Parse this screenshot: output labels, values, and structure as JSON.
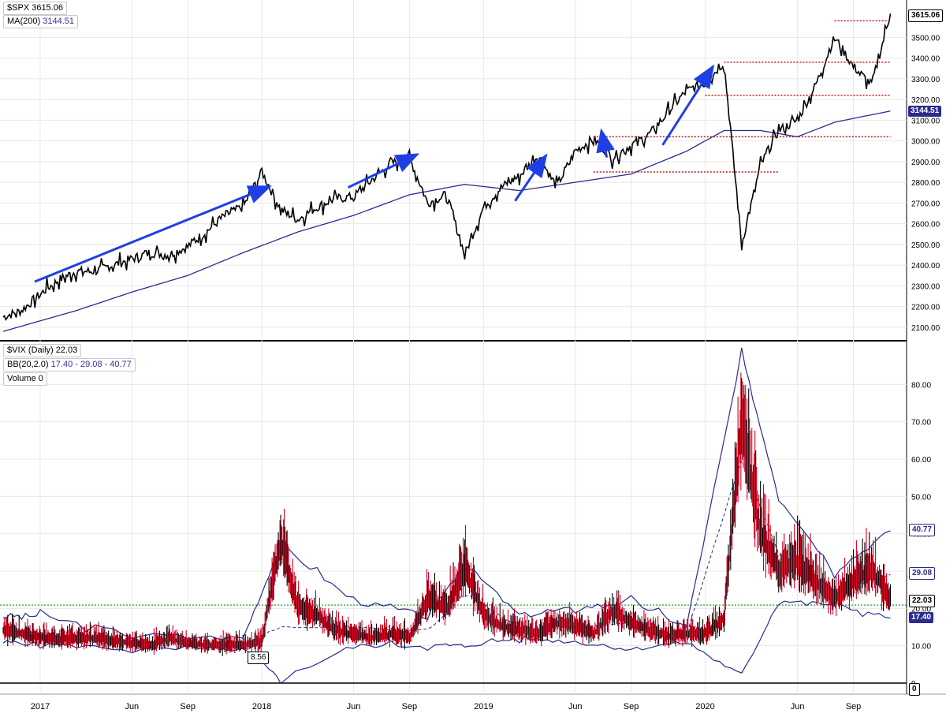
{
  "top_panel": {
    "legend_line1_name": "$SPX",
    "legend_line1_value": "3615.06",
    "legend_line2_name": "MA(200)",
    "legend_line2_value": "3144.51",
    "last_price_tag": "3615.06",
    "ma_tag": "3144.51"
  },
  "bottom_panel": {
    "legend_line1_name": "$VIX (Daily)",
    "legend_line1_value": "22.03",
    "legend_line2_name": "BB(20,2.0)",
    "legend_line2_value": "17.40 - 29.08 - 40.77",
    "legend_line3_name": "Volume",
    "legend_line3_value": "0",
    "upper_tag": "40.77",
    "mid_tag": "29.08",
    "last_tag": "22.03",
    "lower_tag": "17.40",
    "zero_tag": "0",
    "min_label": "8.56"
  },
  "colors": {
    "price": "#000000",
    "ma": "#2b2b8f",
    "arrow": "#1f3fe6",
    "resistance": "#d01010",
    "vix_candle_up": "#000000",
    "vix_candle_down": "#cc0022",
    "bb": "#2b2b8f",
    "green_line": "#1a8a1a",
    "grid": "#e8e8e8"
  },
  "chart_data": [
    {
      "type": "line",
      "title": "$SPX",
      "series": [
        {
          "name": "$SPX",
          "x": [
            "2016-11",
            "2016-12",
            "2017-01",
            "2017-02",
            "2017-03",
            "2017-04",
            "2017-05",
            "2017-06",
            "2017-07",
            "2017-08",
            "2017-09",
            "2017-10",
            "2017-11",
            "2017-12",
            "2018-01",
            "2018-02",
            "2018-03",
            "2018-04",
            "2018-05",
            "2018-06",
            "2018-07",
            "2018-08",
            "2018-09",
            "2018-10",
            "2018-11",
            "2018-12",
            "2019-01",
            "2019-02",
            "2019-03",
            "2019-04",
            "2019-05",
            "2019-06",
            "2019-07",
            "2019-08",
            "2019-09",
            "2019-10",
            "2019-11",
            "2019-12",
            "2020-01",
            "2020-02",
            "2020-03",
            "2020-04",
            "2020-05",
            "2020-06",
            "2020-07",
            "2020-08",
            "2020-09",
            "2020-10",
            "2020-11"
          ],
          "values": [
            2150,
            2180,
            2260,
            2330,
            2370,
            2370,
            2400,
            2430,
            2460,
            2450,
            2490,
            2560,
            2640,
            2680,
            2850,
            2670,
            2620,
            2680,
            2720,
            2730,
            2810,
            2890,
            2920,
            2700,
            2740,
            2450,
            2680,
            2780,
            2830,
            2930,
            2780,
            2950,
            3010,
            2920,
            2980,
            3030,
            3140,
            3240,
            3280,
            3380,
            2500,
            2880,
            3050,
            3100,
            3270,
            3500,
            3360,
            3270,
            3615.06
          ]
        },
        {
          "name": "MA(200)",
          "x": [
            "2016-11",
            "2017-03",
            "2017-06",
            "2017-09",
            "2017-12",
            "2018-03",
            "2018-06",
            "2018-09",
            "2018-12",
            "2019-03",
            "2019-06",
            "2019-09",
            "2019-12",
            "2020-02",
            "2020-04",
            "2020-06",
            "2020-08",
            "2020-11"
          ],
          "values": [
            2080,
            2180,
            2270,
            2350,
            2460,
            2560,
            2640,
            2740,
            2790,
            2760,
            2800,
            2840,
            2950,
            3050,
            3050,
            3020,
            3090,
            3144.51
          ]
        }
      ],
      "y_ticks": [
        "2100.00",
        "2200.00",
        "2300.00",
        "2400.00",
        "2500.00",
        "2600.00",
        "2700.00",
        "2800.00",
        "2900.00",
        "3000.00",
        "3100.00",
        "3200.00",
        "3300.00",
        "3400.00",
        "3500.00"
      ],
      "ylim": [
        2050,
        3650
      ],
      "grid": true,
      "annotations": {
        "horizontal_levels": [
          {
            "value": 3580,
            "from": "2020-08",
            "to": "2020-11"
          },
          {
            "value": 3380,
            "from": "2020-02",
            "to": "2020-11"
          },
          {
            "value": 3220,
            "from": "2020-01",
            "to": "2020-11"
          },
          {
            "value": 3020,
            "from": "2019-07",
            "to": "2020-11"
          },
          {
            "value": 2850,
            "from": "2019-07",
            "to": "2020-05"
          }
        ],
        "trend_arrows": [
          {
            "from_x": "2016-11",
            "from_y": 2320,
            "to_x": "2018-01",
            "to_y": 2780
          },
          {
            "from_x": "2018-04",
            "from_y": 2775,
            "to_x": "2018-09",
            "to_y": 2935
          },
          {
            "from_x": "2019-01",
            "from_y": 2710,
            "to_x": "2019-04",
            "to_y": 2930
          },
          {
            "from_x": "2019-06",
            "from_y": 2920,
            "to_x": "2019-07",
            "to_y": 3050
          },
          {
            "from_x": "2019-09",
            "from_y": 2980,
            "to_x": "2020-01",
            "to_y": 3360
          }
        ]
      }
    },
    {
      "type": "line",
      "title": "$VIX (Daily)",
      "series": [
        {
          "name": "$VIX (Daily)",
          "x": [
            "2016-11",
            "2016-12",
            "2017-01",
            "2017-02",
            "2017-03",
            "2017-04",
            "2017-05",
            "2017-06",
            "2017-07",
            "2017-08",
            "2017-09",
            "2017-10",
            "2017-11",
            "2017-12",
            "2018-01",
            "2018-02",
            "2018-03",
            "2018-04",
            "2018-05",
            "2018-06",
            "2018-07",
            "2018-08",
            "2018-09",
            "2018-10",
            "2018-11",
            "2018-12",
            "2019-01",
            "2019-02",
            "2019-03",
            "2019-04",
            "2019-05",
            "2019-06",
            "2019-07",
            "2019-08",
            "2019-09",
            "2019-10",
            "2019-11",
            "2019-12",
            "2020-01",
            "2020-02",
            "2020-03",
            "2020-04",
            "2020-05",
            "2020-06",
            "2020-07",
            "2020-08",
            "2020-09",
            "2020-10",
            "2020-11"
          ],
          "values": [
            14,
            13,
            12,
            11.5,
            12,
            12,
            11,
            10.5,
            10,
            12,
            10.5,
            10,
            10,
            10,
            11,
            38,
            20,
            18,
            14,
            13,
            12,
            13,
            12,
            22,
            20,
            30,
            18,
            15,
            14,
            13,
            16,
            15,
            13,
            19,
            16,
            14,
            12.5,
            13,
            13,
            17,
            70,
            40,
            30,
            32,
            27,
            22,
            27,
            30,
            22.03
          ]
        },
        {
          "name": "BB(20,2.0) upper",
          "x": [
            "2016-11",
            "2017-01",
            "2017-06",
            "2017-12",
            "2018-02",
            "2018-06",
            "2018-10",
            "2018-12",
            "2019-03",
            "2019-06",
            "2019-09",
            "2019-12",
            "2020-03",
            "2020-05",
            "2020-08",
            "2020-11"
          ],
          "values": [
            18,
            18,
            13,
            12,
            37,
            22,
            18,
            32,
            18,
            20,
            22,
            15,
            88,
            50,
            30,
            40.77
          ]
        },
        {
          "name": "BB(20,2.0) middle",
          "x": [
            "2016-11",
            "2017-01",
            "2017-06",
            "2017-12",
            "2018-02",
            "2018-06",
            "2018-10",
            "2018-12",
            "2019-03",
            "2019-06",
            "2019-09",
            "2019-12",
            "2020-03",
            "2020-05",
            "2020-08",
            "2020-11"
          ],
          "values": [
            14,
            13.5,
            11,
            10.5,
            15,
            15,
            14,
            24,
            15,
            15,
            16,
            13,
            60,
            35,
            25,
            29.08
          ]
        },
        {
          "name": "BB(20,2.0) lower",
          "x": [
            "2016-11",
            "2017-01",
            "2017-06",
            "2017-12",
            "2018-02",
            "2018-06",
            "2018-10",
            "2018-12",
            "2019-03",
            "2019-06",
            "2019-09",
            "2019-12",
            "2020-03",
            "2020-05",
            "2020-08",
            "2020-11"
          ],
          "values": [
            11,
            10.5,
            9,
            9,
            1,
            10,
            10,
            10,
            12,
            11,
            9,
            11,
            2,
            22,
            21,
            17.4
          ]
        }
      ],
      "y_ticks": [
        "0",
        "10.00",
        "20.00",
        "30.00",
        "40.00",
        "50.00",
        "60.00",
        "70.00",
        "80.00"
      ],
      "ylim": [
        0,
        90
      ],
      "reference_level": 20.9,
      "grid": true
    }
  ],
  "x_axis": {
    "ticks": [
      "2017",
      "Jun",
      "Sep",
      "2018",
      "Jun",
      "Sep",
      "2019",
      "Jun",
      "Sep",
      "2020",
      "Jun",
      "Sep"
    ],
    "tick_dates": [
      "2017-01",
      "2017-06",
      "2017-09",
      "2018-01",
      "2018-06",
      "2018-09",
      "2019-01",
      "2019-06",
      "2019-09",
      "2020-01",
      "2020-06",
      "2020-09"
    ]
  }
}
